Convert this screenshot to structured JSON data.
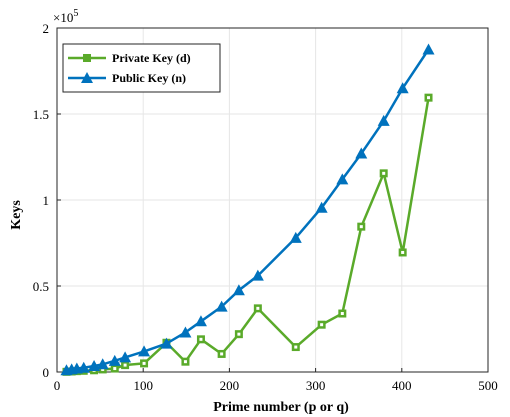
{
  "chart_data": {
    "type": "line",
    "xlabel": "Prime number (p or q)",
    "ylabel": "Keys",
    "xlim": [
      0,
      500
    ],
    "ylim": [
      0,
      200000
    ],
    "x_ticks": [
      0,
      100,
      200,
      300,
      400,
      500
    ],
    "y_ticks": [
      0,
      50000,
      100000,
      150000,
      200000
    ],
    "x_tick_labels": [
      "0",
      "100",
      "200",
      "300",
      "400",
      "500"
    ],
    "y_tick_labels": [
      "0",
      "0.5",
      "1",
      "1.5",
      "2"
    ],
    "y_multiplier": "×10",
    "y_multiplier_exponent": "5",
    "grid": true,
    "legend_position": "top-left",
    "series": [
      {
        "name": "Private Key (d)",
        "color": "#5aaa2a",
        "marker": "square",
        "x": [
          11,
          17,
          23,
          31,
          43,
          53,
          67,
          79,
          101,
          127,
          149,
          167,
          191,
          211,
          233,
          277,
          307,
          331,
          353,
          379,
          401,
          431
        ],
        "y": [
          100,
          300,
          500,
          700,
          1000,
          1500,
          2000,
          4000,
          5000,
          17000,
          6000,
          19000,
          10500,
          22000,
          37000,
          14500,
          27500,
          34000,
          84500,
          115500,
          69500,
          159500
        ]
      },
      {
        "name": "Public Key (n)",
        "color": "#0072bd",
        "marker": "triangle",
        "x": [
          11,
          17,
          23,
          31,
          43,
          53,
          67,
          79,
          101,
          127,
          149,
          167,
          191,
          211,
          233,
          277,
          307,
          331,
          353,
          379,
          401,
          431
        ],
        "y": [
          1000,
          1500,
          2000,
          2500,
          3500,
          4500,
          6500,
          8500,
          12000,
          16500,
          23000,
          29500,
          38000,
          47500,
          56000,
          78000,
          95500,
          112000,
          127000,
          146000,
          165000,
          187500
        ]
      }
    ]
  }
}
